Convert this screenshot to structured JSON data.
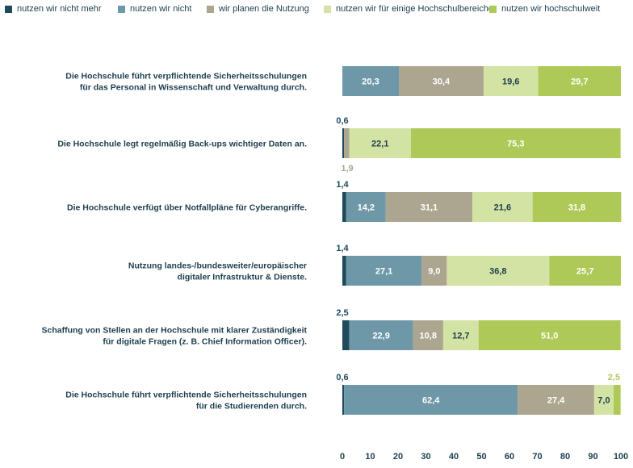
{
  "chart_data": {
    "type": "bar",
    "orientation": "horizontal",
    "stacked": true,
    "xlim": [
      0,
      100
    ],
    "xticks": [
      0,
      10,
      20,
      30,
      40,
      50,
      60,
      70,
      80,
      90,
      100
    ],
    "grid": false,
    "legend_position": "top",
    "colors": [
      "#1e4a5c",
      "#6e98a8",
      "#aca58f",
      "#d3e3a3",
      "#aec957"
    ],
    "categories": [
      [
        "Die Hochschule führt verpflichtende Sicherheitsschulungen",
        "für das Personal in Wissenschaft und Verwaltung durch."
      ],
      [
        "Die Hochschule legt regelmäßig Back-ups wichtiger Daten an."
      ],
      [
        "Die Hochschule verfügt über Notfallpläne für Cyberangriffe."
      ],
      [
        "Nutzung landes-/bundesweiter/europäischer",
        "digitaler Infrastruktur & Dienste."
      ],
      [
        "Schaffung von Stellen an der Hochschule mit klarer Zuständigkeit",
        "für digitale Fragen (z. B. Chief Information Officer)."
      ],
      [
        "Die Hochschule führt verpflichtende Sicherheitsschulungen",
        "für die Studierenden durch."
      ]
    ],
    "series": [
      {
        "name": "nutzen wir nicht mehr",
        "values": [
          0.0,
          0.6,
          1.4,
          1.4,
          2.5,
          0.6
        ],
        "labels": [
          "",
          "0,6",
          "1,4",
          "1,4",
          "2,5",
          "0,6"
        ]
      },
      {
        "name": "nutzen wir nicht",
        "values": [
          20.3,
          0.0,
          14.2,
          27.1,
          22.9,
          62.4
        ],
        "labels": [
          "20,3",
          "",
          "14,2",
          "27,1",
          "22,9",
          "62,4"
        ]
      },
      {
        "name": "wir planen die Nutzung",
        "values": [
          30.4,
          1.9,
          31.1,
          9.0,
          10.8,
          27.4
        ],
        "labels": [
          "30,4",
          "1,9",
          "31,1",
          "9,0",
          "10,8",
          "27,4"
        ]
      },
      {
        "name": "nutzen wir für einige Hochschulbereiche",
        "values": [
          19.6,
          22.1,
          21.6,
          36.8,
          12.7,
          7.0
        ],
        "labels": [
          "19,6",
          "22,1",
          "21,6",
          "36,8",
          "12,7",
          "7,0"
        ]
      },
      {
        "name": "nutzen wir hochschulweit",
        "values": [
          29.7,
          75.3,
          31.8,
          25.7,
          51.0,
          2.5
        ],
        "labels": [
          "29,7",
          "75,3",
          "31,8",
          "25,7",
          "51,0",
          "2,5"
        ]
      }
    ]
  }
}
